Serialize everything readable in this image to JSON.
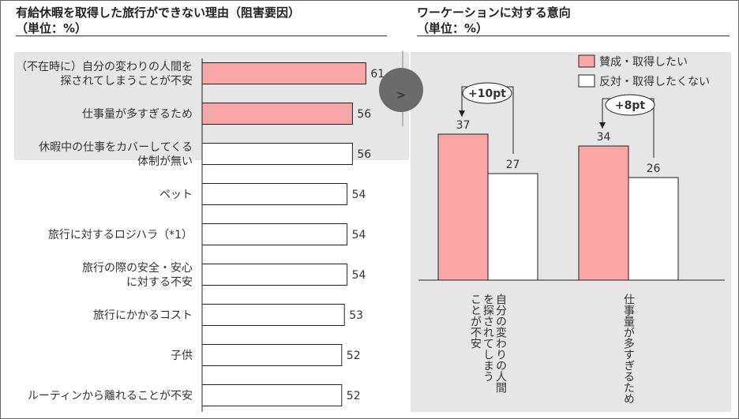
{
  "left_title": "有給休暇を取得した旅行ができない理由（阻害要因）\n（単位：%）",
  "right_title": "ワーケーションに対する意向\n（単位：%）",
  "chart_data": [
    {
      "type": "bar",
      "orientation": "horizontal",
      "title": "有給休暇を取得した旅行ができない理由（阻害要因）",
      "subtitle": "（単位：%）",
      "categories": [
        [
          "（不在時に）自分の変わりの人間を",
          "探されてしまうことが不安"
        ],
        [
          "仕事量が多すぎるため"
        ],
        [
          "休暇中の仕事をカバーしてくる",
          "体制が無い"
        ],
        [
          "ペット"
        ],
        [
          "旅行に対するロジハラ（*1）"
        ],
        [
          "旅行の際の安全・安心",
          "に対する不安"
        ],
        [
          "旅行にかかるコスト"
        ],
        [
          "子供"
        ],
        [
          "ルーティンから離れることが不安"
        ]
      ],
      "values": [
        61,
        56,
        56,
        54,
        54,
        54,
        53,
        52,
        52
      ],
      "highlighted": [
        true,
        true,
        false,
        false,
        false,
        false,
        false,
        false,
        false
      ],
      "highlight_color": "#f8a6a8",
      "highlight_bg": "#e6e6e6"
    },
    {
      "type": "bar",
      "title": "ワーケーションに対する意向",
      "subtitle": "（単位：%）",
      "categories": [
        [
          "自分の変わりの人間",
          "を探されてしまう",
          "ことが不安"
        ],
        [
          "仕事量が多すぎるため"
        ]
      ],
      "series": [
        {
          "name": "賛成・取得したい",
          "values": [
            37,
            34
          ],
          "color": "#f8a6a8"
        },
        {
          "name": "反対・取得したくない",
          "values": [
            27,
            26
          ],
          "color": "#ffffff"
        }
      ],
      "annotations": [
        "+10pt",
        "+8pt"
      ],
      "legend": "top-right",
      "background": "#e6e6e6"
    }
  ],
  "arrow_label": ">"
}
